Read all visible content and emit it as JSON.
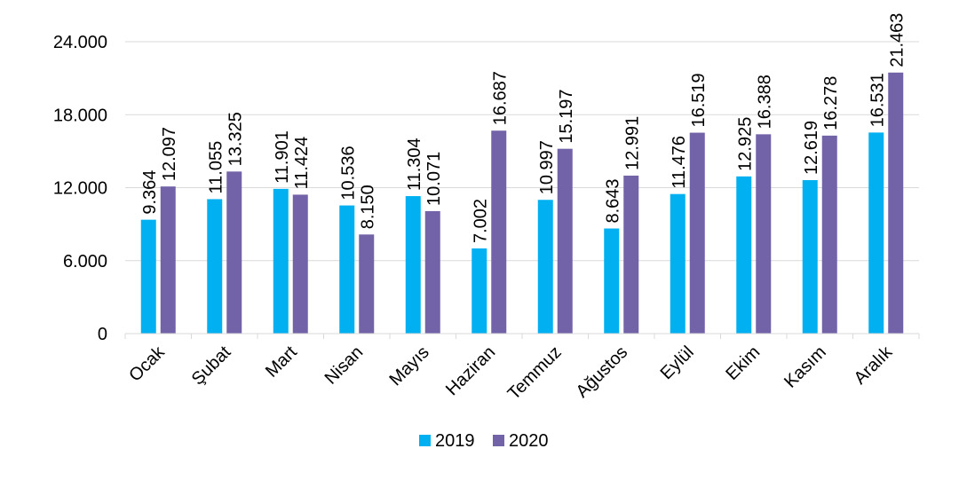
{
  "chart_data": {
    "type": "bar",
    "categories": [
      "Ocak",
      "Şubat",
      "Mart",
      "Nisan",
      "Mayıs",
      "Haziran",
      "Temmuz",
      "Ağustos",
      "Eylül",
      "Ekim",
      "Kasım",
      "Aralık"
    ],
    "series": [
      {
        "name": "2019",
        "color": "#00b0f0",
        "values": [
          9364,
          11055,
          11901,
          10536,
          11304,
          7002,
          10997,
          8643,
          11476,
          12925,
          12619,
          16531
        ],
        "labels": [
          "9.364",
          "11.055",
          "11.901",
          "10.536",
          "11.304",
          "7.002",
          "10.997",
          "8.643",
          "11.476",
          "12.925",
          "12.619",
          "16.531"
        ]
      },
      {
        "name": "2020",
        "color": "#7262a8",
        "values": [
          12097,
          13325,
          11424,
          8150,
          10071,
          16687,
          15197,
          12991,
          16519,
          16388,
          16278,
          21463
        ],
        "labels": [
          "12.097",
          "13.325",
          "11.424",
          "8.150",
          "10.071",
          "16.687",
          "15.197",
          "12.991",
          "16.519",
          "16.388",
          "16.278",
          "21.463"
        ]
      }
    ],
    "ylim": [
      0,
      24000
    ],
    "yticks": [
      0,
      6000,
      12000,
      18000,
      24000
    ],
    "ytick_labels": [
      "0",
      "6.000",
      "12.000",
      "18.000",
      "24.000"
    ],
    "grid": true,
    "legend_position": "bottom",
    "title": "",
    "xlabel": "",
    "ylabel": ""
  }
}
